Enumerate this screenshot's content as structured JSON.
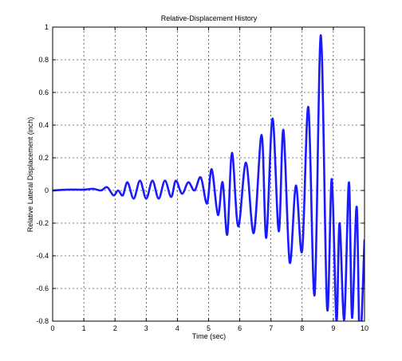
{
  "chart_data": {
    "type": "line",
    "title": "Relative-Displacement History",
    "xlabel": "Time (sec)",
    "ylabel": "Relative Lateral Displacement (inch)",
    "xlim": [
      0,
      10
    ],
    "ylim": [
      -0.8,
      1
    ],
    "xticks": [
      "0",
      "1",
      "2",
      "3",
      "4",
      "5",
      "6",
      "7",
      "8",
      "9",
      "10"
    ],
    "yticks": [
      "-0.8",
      "-0.6",
      "-0.4",
      "-0.2",
      "0",
      "0.2",
      "0.4",
      "0.6",
      "0.8",
      "1"
    ],
    "grid": true,
    "line_color": "#1a1aff",
    "series": [
      {
        "x": [
          0,
          0.5,
          1.0,
          1.3,
          1.55,
          1.75,
          1.95,
          2.1,
          2.25,
          2.4,
          2.6,
          2.8,
          3.0,
          3.2,
          3.4,
          3.6,
          3.8,
          3.95,
          4.15,
          4.35,
          4.55,
          4.75,
          4.95,
          5.1,
          5.3,
          5.45,
          5.6,
          5.75,
          5.95,
          6.2,
          6.45,
          6.7,
          6.85,
          7.05,
          7.25,
          7.4,
          7.6,
          7.8,
          8.0,
          8.2,
          8.4,
          8.6,
          8.8,
          8.95,
          9.1,
          9.2,
          9.35,
          9.5,
          9.6,
          9.75,
          9.85,
          10.0
        ],
        "y": [
          0.0,
          0.005,
          0.005,
          0.01,
          0.0,
          0.02,
          -0.03,
          0.0,
          -0.03,
          0.05,
          -0.05,
          0.06,
          -0.05,
          0.06,
          -0.05,
          0.06,
          -0.04,
          0.06,
          -0.02,
          0.05,
          0.0,
          0.08,
          -0.08,
          0.13,
          -0.15,
          0.05,
          -0.27,
          0.23,
          -0.22,
          0.17,
          -0.26,
          0.34,
          -0.29,
          0.44,
          -0.25,
          0.37,
          -0.44,
          0.03,
          -0.37,
          0.51,
          -0.64,
          0.95,
          -0.72,
          0.07,
          -0.8,
          -0.2,
          -0.79,
          0.05,
          -0.78,
          -0.1,
          -0.95,
          -0.3
        ]
      }
    ]
  }
}
